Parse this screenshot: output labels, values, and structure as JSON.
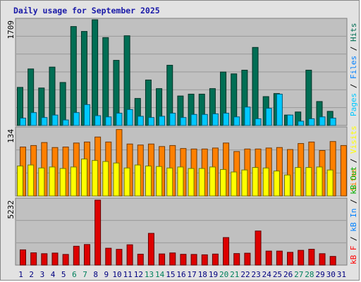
{
  "title": "Daily usage for September 2025",
  "colors": {
    "hits": "#006e54",
    "files": "#00c8ff",
    "pages": "#00c8ff",
    "visits": "#ffff00",
    "sites": "#ff8000",
    "kbin": "#0080ff",
    "kbout": "#00b000",
    "kbf": "#ff0000",
    "kbf_bar": "#dd0000",
    "weekend_label": "#00805c",
    "weekday_label": "#000080"
  },
  "chart_data": [
    {
      "type": "bar",
      "panel": "hits-files-pages",
      "categories": [
        "1",
        "2",
        "3",
        "4",
        "5",
        "6",
        "7",
        "8",
        "9",
        "10",
        "11",
        "12",
        "13",
        "14",
        "15",
        "16",
        "17",
        "18",
        "19",
        "20",
        "21",
        "22",
        "23",
        "24",
        "25",
        "26",
        "27",
        "28",
        "29",
        "30",
        "31"
      ],
      "max_label": "1709",
      "ylim": [
        0,
        1709
      ],
      "series": [
        {
          "name": "Hits",
          "values": [
            620,
            920,
            610,
            950,
            700,
            1610,
            1530,
            1720,
            1430,
            1060,
            1460,
            440,
            740,
            600,
            980,
            480,
            510,
            510,
            600,
            870,
            840,
            900,
            1270,
            470,
            520,
            170,
            220,
            900,
            390,
            230,
            0
          ]
        },
        {
          "name": "Files",
          "values": [
            120,
            210,
            130,
            170,
            90,
            210,
            340,
            160,
            140,
            200,
            260,
            150,
            130,
            150,
            200,
            130,
            180,
            180,
            190,
            200,
            140,
            300,
            110,
            280,
            510,
            170,
            70,
            110,
            140,
            120,
            0
          ]
        },
        {
          "name": "Pages",
          "values": [
            110,
            200,
            120,
            160,
            80,
            200,
            330,
            150,
            130,
            190,
            250,
            140,
            120,
            140,
            190,
            120,
            170,
            170,
            180,
            190,
            130,
            290,
            100,
            270,
            500,
            160,
            60,
            100,
            130,
            110,
            0
          ]
        }
      ],
      "axis_label": [
        "Hits",
        "Files",
        "Pages"
      ]
    },
    {
      "type": "bar",
      "panel": "visits-sites",
      "categories": [
        "1",
        "2",
        "3",
        "4",
        "5",
        "6",
        "7",
        "8",
        "9",
        "10",
        "11",
        "12",
        "13",
        "14",
        "15",
        "16",
        "17",
        "18",
        "19",
        "20",
        "21",
        "22",
        "23",
        "24",
        "25",
        "26",
        "27",
        "28",
        "29",
        "30",
        "31"
      ],
      "max_label": "134",
      "ylim": [
        0,
        134
      ],
      "series": [
        {
          "name": "Visits",
          "values": [
            60,
            62,
            56,
            58,
            55,
            58,
            74,
            71,
            69,
            66,
            56,
            62,
            60,
            59,
            56,
            58,
            55,
            55,
            58,
            53,
            48,
            52,
            57,
            56,
            50,
            42,
            57,
            57,
            58,
            52,
            0
          ]
        },
        {
          "name": "Sites",
          "values": [
            98,
            101,
            107,
            97,
            98,
            106,
            108,
            118,
            108,
            133,
            104,
            102,
            104,
            99,
            101,
            95,
            94,
            94,
            96,
            106,
            89,
            94,
            94,
            96,
            97,
            93,
            105,
            108,
            91,
            109,
            101
          ]
        }
      ],
      "axis_label": [
        "Visits",
        "Sites"
      ]
    },
    {
      "type": "bar",
      "panel": "kbytes",
      "categories": [
        "1",
        "2",
        "3",
        "4",
        "5",
        "6",
        "7",
        "8",
        "9",
        "10",
        "11",
        "12",
        "13",
        "14",
        "15",
        "16",
        "17",
        "18",
        "19",
        "20",
        "21",
        "22",
        "23",
        "24",
        "25",
        "26",
        "27",
        "28",
        "29",
        "30",
        "31"
      ],
      "max_label": "5232",
      "ylim": [
        0,
        5232
      ],
      "series": [
        {
          "name": "kB F",
          "values": [
            1230,
            990,
            920,
            970,
            860,
            1520,
            1660,
            5240,
            1360,
            1270,
            1640,
            880,
            2560,
            900,
            980,
            870,
            860,
            830,
            890,
            2220,
            930,
            960,
            2750,
            1130,
            1130,
            1030,
            1190,
            1280,
            920,
            700,
            0
          ]
        }
      ],
      "axis_label": [
        "kB F",
        "kB In",
        "kB Out"
      ]
    }
  ],
  "x_labels": [
    {
      "t": "1",
      "w": false
    },
    {
      "t": "2",
      "w": false
    },
    {
      "t": "3",
      "w": false
    },
    {
      "t": "4",
      "w": false
    },
    {
      "t": "5",
      "w": false
    },
    {
      "t": "6",
      "w": true
    },
    {
      "t": "7",
      "w": true
    },
    {
      "t": "8",
      "w": false
    },
    {
      "t": "9",
      "w": false
    },
    {
      "t": "10",
      "w": false
    },
    {
      "t": "11",
      "w": false
    },
    {
      "t": "12",
      "w": false
    },
    {
      "t": "13",
      "w": true
    },
    {
      "t": "14",
      "w": true
    },
    {
      "t": "15",
      "w": false
    },
    {
      "t": "16",
      "w": false
    },
    {
      "t": "17",
      "w": false
    },
    {
      "t": "18",
      "w": false
    },
    {
      "t": "19",
      "w": false
    },
    {
      "t": "20",
      "w": true
    },
    {
      "t": "21",
      "w": true
    },
    {
      "t": "22",
      "w": false
    },
    {
      "t": "23",
      "w": false
    },
    {
      "t": "24",
      "w": false
    },
    {
      "t": "25",
      "w": false
    },
    {
      "t": "26",
      "w": false
    },
    {
      "t": "27",
      "w": true
    },
    {
      "t": "28",
      "w": true
    },
    {
      "t": "29",
      "w": false
    },
    {
      "t": "30",
      "w": false
    },
    {
      "t": "31",
      "w": false
    }
  ]
}
